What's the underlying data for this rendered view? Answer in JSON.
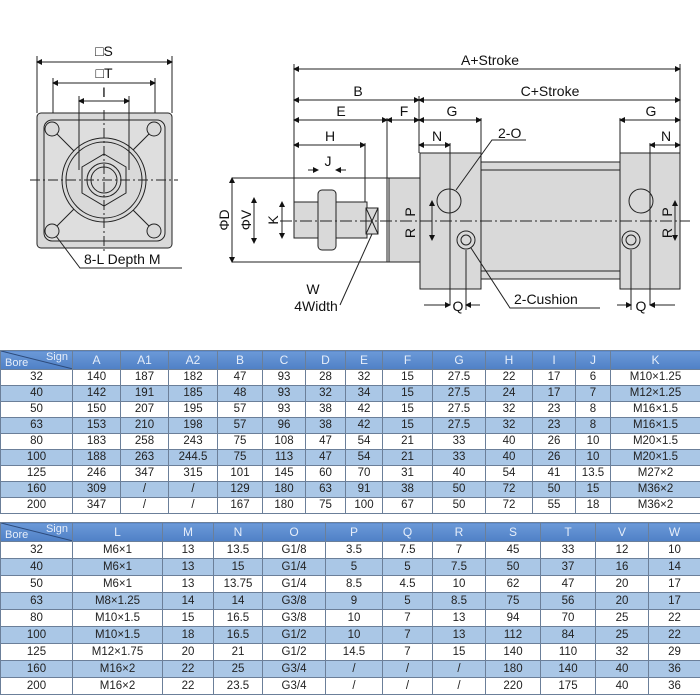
{
  "colors": {
    "header": "#5a8bd0",
    "alt_row": "#aac7e6",
    "drawing_fill": "#d9d9d9"
  },
  "front_view": {
    "s_label": "□S",
    "t_label": "□T",
    "i_label": "I",
    "holes_label": "8-L Depth M"
  },
  "side_view": {
    "a_stroke": "A+Stroke",
    "b": "B",
    "c_stroke": "C+Stroke",
    "e": "E",
    "f": "F",
    "g_left": "G",
    "g_right": "G",
    "h": "H",
    "j": "J",
    "n_left": "N",
    "n_right": "N",
    "port": "2-O",
    "d": "ΦD",
    "v": "ΦV",
    "k": "K",
    "p_left": "P",
    "r_left": "R",
    "p_right": "P",
    "r_right": "R",
    "w": "W",
    "width": "4Width",
    "cushion": "2-Cushion",
    "q_left": "Q",
    "q_right": "Q"
  },
  "table1": {
    "corner_sign": "Sign",
    "corner_bore": "Bore",
    "columns": [
      "A",
      "A1",
      "A2",
      "B",
      "C",
      "D",
      "E",
      "F",
      "G",
      "H",
      "I",
      "J",
      "K"
    ],
    "rows": [
      [
        "32",
        "140",
        "187",
        "182",
        "47",
        "93",
        "28",
        "32",
        "15",
        "27.5",
        "22",
        "17",
        "6",
        "M10×1.25"
      ],
      [
        "40",
        "142",
        "191",
        "185",
        "48",
        "93",
        "32",
        "34",
        "15",
        "27.5",
        "24",
        "17",
        "7",
        "M12×1.25"
      ],
      [
        "50",
        "150",
        "207",
        "195",
        "57",
        "93",
        "38",
        "42",
        "15",
        "27.5",
        "32",
        "23",
        "8",
        "M16×1.5"
      ],
      [
        "63",
        "153",
        "210",
        "198",
        "57",
        "96",
        "38",
        "42",
        "15",
        "27.5",
        "32",
        "23",
        "8",
        "M16×1.5"
      ],
      [
        "80",
        "183",
        "258",
        "243",
        "75",
        "108",
        "47",
        "54",
        "21",
        "33",
        "40",
        "26",
        "10",
        "M20×1.5"
      ],
      [
        "100",
        "188",
        "263",
        "244.5",
        "75",
        "113",
        "47",
        "54",
        "21",
        "33",
        "40",
        "26",
        "10",
        "M20×1.5"
      ],
      [
        "125",
        "246",
        "347",
        "315",
        "101",
        "145",
        "60",
        "70",
        "31",
        "40",
        "54",
        "41",
        "13.5",
        "M27×2"
      ],
      [
        "160",
        "309",
        "/",
        "/",
        "129",
        "180",
        "63",
        "91",
        "38",
        "50",
        "72",
        "50",
        "15",
        "M36×2"
      ],
      [
        "200",
        "347",
        "/",
        "/",
        "167",
        "180",
        "75",
        "100",
        "67",
        "50",
        "72",
        "55",
        "18",
        "M36×2"
      ]
    ]
  },
  "table2": {
    "corner_sign": "Sign",
    "corner_bore": "Bore",
    "columns": [
      "L",
      "M",
      "N",
      "O",
      "P",
      "Q",
      "R",
      "S",
      "T",
      "V",
      "W"
    ],
    "rows": [
      [
        "32",
        "M6×1",
        "13",
        "13.5",
        "G1/8",
        "3.5",
        "7.5",
        "7",
        "45",
        "33",
        "12",
        "10"
      ],
      [
        "40",
        "M6×1",
        "13",
        "15",
        "G1/4",
        "5",
        "5",
        "7.5",
        "50",
        "37",
        "16",
        "14"
      ],
      [
        "50",
        "M6×1",
        "13",
        "13.75",
        "G1/4",
        "8.5",
        "4.5",
        "10",
        "62",
        "47",
        "20",
        "17"
      ],
      [
        "63",
        "M8×1.25",
        "14",
        "14",
        "G3/8",
        "9",
        "5",
        "8.5",
        "75",
        "56",
        "20",
        "17"
      ],
      [
        "80",
        "M10×1.5",
        "15",
        "16.5",
        "G3/8",
        "10",
        "7",
        "13",
        "94",
        "70",
        "25",
        "22"
      ],
      [
        "100",
        "M10×1.5",
        "18",
        "16.5",
        "G1/2",
        "10",
        "7",
        "13",
        "112",
        "84",
        "25",
        "22"
      ],
      [
        "125",
        "M12×1.75",
        "20",
        "21",
        "G1/2",
        "14.5",
        "7",
        "15",
        "140",
        "110",
        "32",
        "29"
      ],
      [
        "160",
        "M16×2",
        "22",
        "25",
        "G3/4",
        "/",
        "/",
        "/",
        "180",
        "140",
        "40",
        "36"
      ],
      [
        "200",
        "M16×2",
        "22",
        "23.5",
        "G3/4",
        "/",
        "/",
        "/",
        "220",
        "175",
        "40",
        "36"
      ]
    ]
  }
}
